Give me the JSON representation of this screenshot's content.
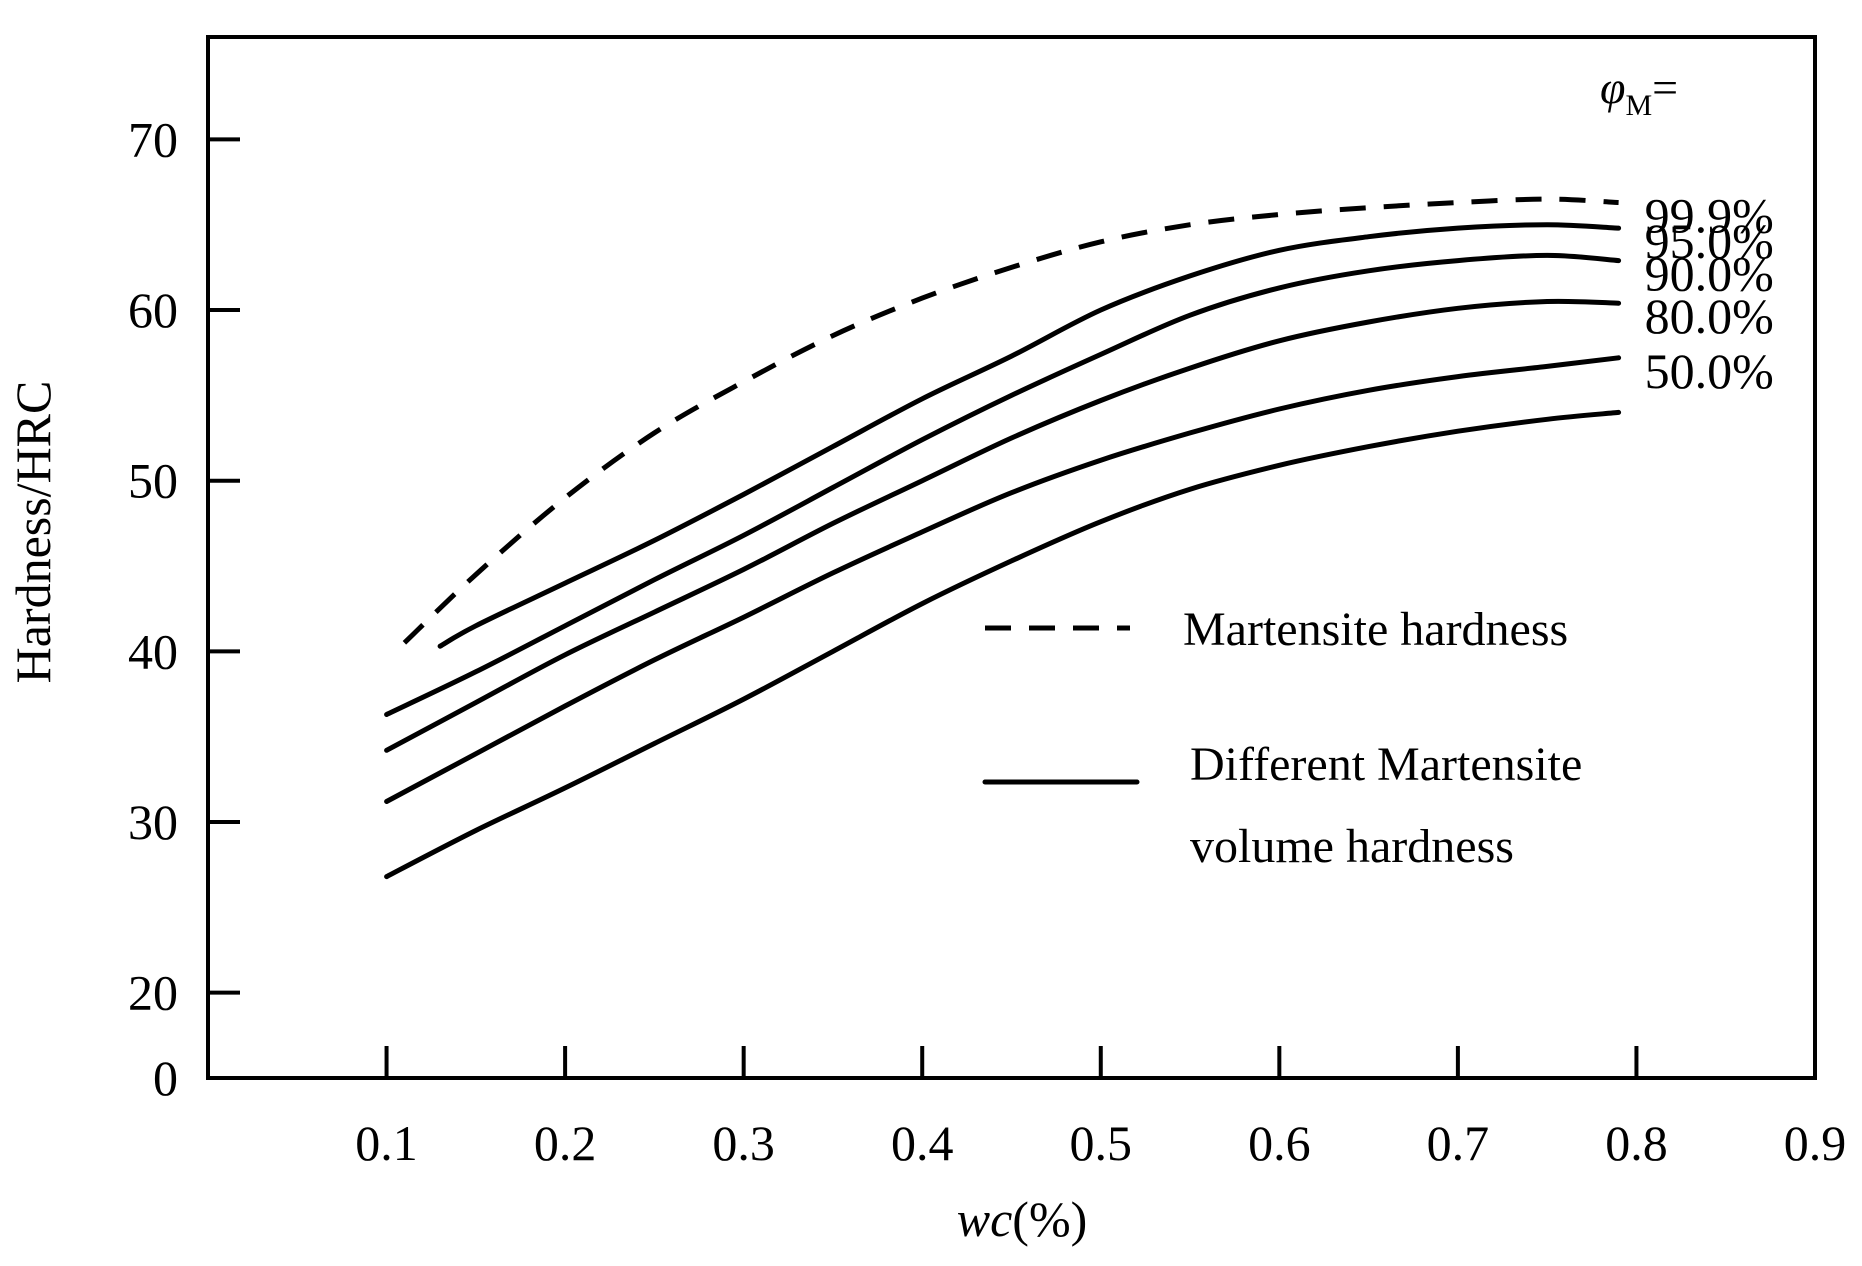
{
  "chart_data": {
    "type": "line",
    "xlabel": "wc(%)",
    "xlabel_italic_part": "wc",
    "xlabel_rest": "(%)",
    "ylabel": "Hardness/HRC",
    "xlim": [
      0.0,
      0.9
    ],
    "ylim": [
      15,
      76
    ],
    "x_ticks": [
      0.1,
      0.2,
      0.3,
      0.4,
      0.5,
      0.6,
      0.7,
      0.8,
      0.9
    ],
    "x_tick_labels": [
      "0.1",
      "0.2",
      "0.3",
      "0.4",
      "0.5",
      "0.6",
      "0.7",
      "0.8",
      "0.9"
    ],
    "y_ticks": [
      20,
      30,
      40,
      50,
      60,
      70
    ],
    "y_tick_labels": [
      "20",
      "30",
      "40",
      "50",
      "60",
      "70"
    ],
    "y_axis_origin_label": "0",
    "grid": false,
    "series_title": "φM=",
    "series_title_symbol": "φ",
    "series_title_subscript": "M",
    "series_title_suffix": "=",
    "series": [
      {
        "name": "99.9%",
        "style": "dashed",
        "x": [
          0.11,
          0.15,
          0.2,
          0.25,
          0.3,
          0.35,
          0.4,
          0.45,
          0.5,
          0.55,
          0.6,
          0.65,
          0.7,
          0.75,
          0.79
        ],
        "y": [
          40.5,
          44.5,
          49.0,
          52.8,
          55.8,
          58.5,
          60.7,
          62.5,
          64.0,
          65.0,
          65.6,
          66.0,
          66.3,
          66.5,
          66.3
        ]
      },
      {
        "name": "95.0%",
        "style": "solid",
        "x": [
          0.13,
          0.15,
          0.2,
          0.25,
          0.3,
          0.35,
          0.4,
          0.45,
          0.5,
          0.55,
          0.6,
          0.65,
          0.7,
          0.75,
          0.79
        ],
        "y": [
          40.3,
          41.5,
          44.0,
          46.5,
          49.2,
          52.0,
          54.8,
          57.3,
          60.0,
          62.0,
          63.5,
          64.3,
          64.8,
          65.0,
          64.8
        ]
      },
      {
        "name": "90.0%",
        "style": "solid",
        "x": [
          0.1,
          0.15,
          0.2,
          0.25,
          0.3,
          0.35,
          0.4,
          0.45,
          0.5,
          0.55,
          0.6,
          0.65,
          0.7,
          0.75,
          0.79
        ],
        "y": [
          36.3,
          38.8,
          41.5,
          44.2,
          46.8,
          49.6,
          52.4,
          55.0,
          57.4,
          59.7,
          61.3,
          62.3,
          62.9,
          63.2,
          62.9
        ]
      },
      {
        "name": "80.0%",
        "style": "solid",
        "x": [
          0.1,
          0.15,
          0.2,
          0.25,
          0.3,
          0.35,
          0.4,
          0.45,
          0.5,
          0.55,
          0.6,
          0.65,
          0.7,
          0.75,
          0.79
        ],
        "y": [
          34.2,
          37.0,
          39.8,
          42.3,
          44.8,
          47.5,
          50.0,
          52.5,
          54.7,
          56.6,
          58.2,
          59.3,
          60.1,
          60.5,
          60.4
        ]
      },
      {
        "name": "50.0%",
        "style": "solid",
        "x": [
          0.1,
          0.15,
          0.2,
          0.25,
          0.3,
          0.35,
          0.4,
          0.45,
          0.5,
          0.55,
          0.6,
          0.65,
          0.7,
          0.75,
          0.79
        ],
        "y": [
          31.2,
          34.0,
          36.8,
          39.5,
          42.0,
          44.6,
          47.0,
          49.3,
          51.2,
          52.8,
          54.2,
          55.3,
          56.1,
          56.7,
          57.2
        ]
      },
      {
        "name": "",
        "style": "solid",
        "x": [
          0.1,
          0.15,
          0.2,
          0.25,
          0.3,
          0.35,
          0.4,
          0.45,
          0.5,
          0.55,
          0.6,
          0.65,
          0.7,
          0.75,
          0.79
        ],
        "y": [
          26.8,
          29.5,
          32.0,
          34.6,
          37.2,
          40.0,
          42.8,
          45.3,
          47.6,
          49.5,
          50.9,
          52.0,
          52.9,
          53.6,
          54.0
        ]
      }
    ],
    "legend": [
      {
        "label": "Martensite hardness",
        "style": "dashed"
      },
      {
        "label_lines": [
          "Different Martensite",
          "volume hardness"
        ],
        "style": "solid"
      }
    ],
    "legend_position": "lower-right"
  }
}
